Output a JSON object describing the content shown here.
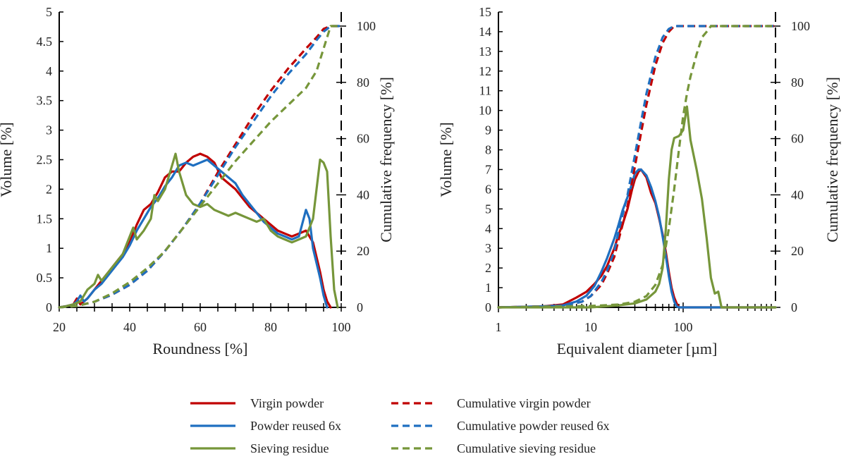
{
  "colors": {
    "virgin": "#c00000",
    "reused": "#1f6fc0",
    "residue": "#76963a",
    "axis": "#000000"
  },
  "chart_data": [
    {
      "type": "line",
      "title": "",
      "xlabel": "Roundness [%]",
      "ylabel": "Volume [%]",
      "y2label": "Cumulative frequency [%]",
      "xlim": [
        20,
        100
      ],
      "ylim": [
        0,
        5
      ],
      "y2lim": [
        0,
        105
      ],
      "xticks": [
        20,
        40,
        60,
        80,
        100
      ],
      "yticks": [
        "0",
        "0.5",
        "1",
        "1.5",
        "2",
        "2.5",
        "3",
        "3.5",
        "4",
        "4.5",
        "5"
      ],
      "y2ticks": [
        0,
        20,
        40,
        60,
        80,
        100
      ],
      "series": [
        {
          "name": "Virgin powder",
          "color_key": "virgin",
          "dashed": false,
          "axis": "left",
          "x": [
            20,
            22,
            24,
            25,
            26,
            27,
            28,
            30,
            32,
            34,
            36,
            38,
            40,
            42,
            44,
            46,
            48,
            50,
            52,
            54,
            56,
            58,
            60,
            62,
            64,
            66,
            68,
            70,
            72,
            74,
            76,
            78,
            80,
            82,
            84,
            86,
            88,
            90,
            92,
            94,
            95,
            96,
            97
          ],
          "y": [
            0,
            0.02,
            0.05,
            0.15,
            0.05,
            0.1,
            0.15,
            0.3,
            0.45,
            0.6,
            0.75,
            0.9,
            1.1,
            1.4,
            1.65,
            1.75,
            1.95,
            2.2,
            2.3,
            2.3,
            2.45,
            2.55,
            2.6,
            2.55,
            2.45,
            2.2,
            2.1,
            2.0,
            1.85,
            1.7,
            1.6,
            1.5,
            1.4,
            1.3,
            1.25,
            1.2,
            1.25,
            1.3,
            1.1,
            0.6,
            0.3,
            0.1,
            0
          ]
        },
        {
          "name": "Powder reused 6x",
          "color_key": "reused",
          "dashed": false,
          "axis": "left",
          "x": [
            20,
            22,
            24,
            25,
            26,
            27,
            28,
            30,
            32,
            34,
            36,
            38,
            40,
            42,
            44,
            46,
            48,
            50,
            52,
            54,
            56,
            58,
            60,
            62,
            64,
            66,
            68,
            70,
            72,
            74,
            76,
            78,
            80,
            82,
            84,
            86,
            88,
            90,
            91,
            92,
            94,
            95,
            96
          ],
          "y": [
            0,
            0.02,
            0.05,
            0.1,
            0.2,
            0.1,
            0.15,
            0.3,
            0.4,
            0.55,
            0.7,
            0.85,
            1.05,
            1.3,
            1.5,
            1.7,
            1.85,
            2.05,
            2.2,
            2.4,
            2.45,
            2.4,
            2.45,
            2.5,
            2.4,
            2.3,
            2.2,
            2.1,
            1.9,
            1.75,
            1.6,
            1.45,
            1.35,
            1.25,
            1.2,
            1.15,
            1.2,
            1.65,
            1.5,
            1.0,
            0.5,
            0.2,
            0
          ]
        },
        {
          "name": "Sieving residue",
          "color_key": "residue",
          "dashed": false,
          "axis": "left",
          "x": [
            20,
            22,
            24,
            26,
            28,
            30,
            31,
            32,
            34,
            36,
            38,
            40,
            41,
            42,
            44,
            46,
            47,
            48,
            50,
            52,
            53,
            54,
            56,
            58,
            60,
            62,
            64,
            66,
            68,
            70,
            72,
            74,
            76,
            78,
            80,
            82,
            84,
            86,
            88,
            90,
            92,
            93,
            94,
            95,
            96,
            97,
            98,
            99
          ],
          "y": [
            0,
            0.02,
            0.05,
            0.1,
            0.3,
            0.4,
            0.55,
            0.45,
            0.6,
            0.75,
            0.9,
            1.2,
            1.35,
            1.15,
            1.3,
            1.5,
            1.9,
            1.8,
            2.0,
            2.4,
            2.6,
            2.3,
            1.9,
            1.75,
            1.7,
            1.75,
            1.65,
            1.6,
            1.55,
            1.6,
            1.55,
            1.5,
            1.45,
            1.5,
            1.3,
            1.2,
            1.15,
            1.1,
            1.15,
            1.2,
            1.5,
            2.0,
            2.5,
            2.45,
            2.3,
            1.2,
            0.3,
            0
          ]
        },
        {
          "name": "Cumulative virgin powder",
          "color_key": "virgin",
          "dashed": true,
          "axis": "right",
          "x": [
            20,
            25,
            30,
            35,
            40,
            45,
            50,
            55,
            60,
            65,
            70,
            75,
            80,
            85,
            90,
            93,
            95,
            97,
            100
          ],
          "y": [
            0,
            0.5,
            2,
            4.5,
            8,
            13,
            20,
            28,
            37,
            48,
            58,
            68,
            77,
            85,
            92,
            96,
            99,
            100,
            100
          ]
        },
        {
          "name": "Cumulative powder reused 6x",
          "color_key": "reused",
          "dashed": true,
          "axis": "right",
          "x": [
            20,
            25,
            30,
            35,
            40,
            45,
            50,
            55,
            60,
            65,
            70,
            75,
            80,
            85,
            90,
            93,
            95,
            97,
            100
          ],
          "y": [
            0,
            0.5,
            2,
            4.5,
            8,
            13,
            20,
            28,
            37,
            47,
            57,
            66,
            75,
            83,
            90,
            95,
            98,
            100,
            100
          ]
        },
        {
          "name": "Cumulative sieving residue",
          "color_key": "residue",
          "dashed": true,
          "axis": "right",
          "x": [
            20,
            25,
            30,
            35,
            40,
            45,
            50,
            55,
            60,
            65,
            70,
            75,
            80,
            85,
            90,
            93,
            95,
            97,
            100
          ],
          "y": [
            0,
            0.5,
            2,
            5,
            9,
            14,
            20,
            28,
            36,
            44,
            52,
            59,
            66,
            72,
            78,
            84,
            92,
            100,
            100
          ]
        }
      ]
    },
    {
      "type": "line",
      "title": "",
      "xscale": "log",
      "xlabel": "Equivalent diameter [µm]",
      "ylabel": "Volume [%]",
      "y2label": "Cumulative frequency [%]",
      "xlim": [
        1,
        1000
      ],
      "ylim": [
        0,
        15
      ],
      "y2lim": [
        0,
        105
      ],
      "xticks": [
        "1",
        "10",
        "100"
      ],
      "yticks": [
        "0",
        "1",
        "2",
        "3",
        "4",
        "5",
        "6",
        "7",
        "8",
        "9",
        "10",
        "11",
        "12",
        "13",
        "14",
        "15"
      ],
      "y2ticks": [
        0,
        20,
        40,
        60,
        80,
        100
      ],
      "series": [
        {
          "name": "Virgin powder",
          "color_key": "virgin",
          "dashed": false,
          "axis": "left",
          "x": [
            1,
            3,
            5,
            7,
            9,
            11,
            13,
            15,
            18,
            20,
            22,
            25,
            28,
            30,
            33,
            35,
            40,
            45,
            50,
            55,
            60,
            65,
            70,
            75,
            80,
            85,
            90,
            100,
            1000
          ],
          "y": [
            0,
            0.05,
            0.15,
            0.5,
            0.8,
            1.2,
            1.6,
            2.1,
            3.0,
            3.7,
            4.2,
            5.0,
            6.0,
            6.5,
            6.9,
            7.0,
            6.6,
            5.8,
            5.3,
            4.5,
            3.7,
            2.8,
            1.8,
            1.0,
            0.5,
            0.2,
            0,
            0,
            0
          ]
        },
        {
          "name": "Powder reused 6x",
          "color_key": "reused",
          "dashed": false,
          "axis": "left",
          "x": [
            1,
            3,
            5,
            7,
            9,
            11,
            13,
            15,
            18,
            20,
            22,
            25,
            28,
            30,
            33,
            35,
            40,
            45,
            50,
            55,
            60,
            65,
            70,
            75,
            80,
            85,
            90,
            100,
            1000
          ],
          "y": [
            0,
            0.05,
            0.1,
            0.3,
            0.6,
            1.1,
            1.8,
            2.5,
            3.5,
            4.2,
            4.9,
            5.6,
            6.3,
            6.8,
            7.0,
            7.0,
            6.7,
            6.1,
            5.4,
            4.6,
            3.6,
            2.6,
            1.6,
            0.8,
            0.3,
            0.05,
            0,
            0,
            0
          ]
        },
        {
          "name": "Sieving residue",
          "color_key": "residue",
          "dashed": false,
          "axis": "left",
          "x": [
            1,
            10,
            20,
            30,
            40,
            50,
            55,
            60,
            65,
            70,
            75,
            80,
            90,
            100,
            110,
            120,
            140,
            160,
            180,
            200,
            220,
            240,
            260,
            1000
          ],
          "y": [
            0,
            0,
            0.1,
            0.2,
            0.4,
            0.8,
            1.2,
            2.0,
            4.0,
            6.5,
            8.0,
            8.6,
            8.7,
            9.0,
            10.2,
            8.5,
            7.0,
            5.5,
            3.5,
            1.5,
            0.7,
            0.8,
            0,
            0
          ]
        },
        {
          "name": "Cumulative virgin powder",
          "color_key": "virgin",
          "dashed": true,
          "axis": "right",
          "x": [
            1,
            5,
            8,
            10,
            13,
            15,
            18,
            20,
            25,
            30,
            35,
            40,
            50,
            60,
            70,
            80,
            90,
            100,
            1000
          ],
          "y": [
            0,
            0.5,
            2,
            4,
            8,
            12,
            18,
            24,
            36,
            50,
            62,
            72,
            86,
            94,
            98,
            100,
            100,
            100,
            100
          ]
        },
        {
          "name": "Cumulative powder reused 6x",
          "color_key": "reused",
          "dashed": true,
          "axis": "right",
          "x": [
            1,
            5,
            8,
            10,
            13,
            15,
            18,
            20,
            25,
            30,
            35,
            40,
            50,
            60,
            70,
            80,
            90,
            100,
            1000
          ],
          "y": [
            0,
            0.5,
            2,
            4,
            9,
            13,
            20,
            27,
            40,
            54,
            66,
            76,
            89,
            96,
            99,
            100,
            100,
            100,
            100
          ]
        },
        {
          "name": "Cumulative sieving residue",
          "color_key": "residue",
          "dashed": true,
          "axis": "right",
          "x": [
            1,
            10,
            20,
            30,
            40,
            50,
            60,
            70,
            80,
            90,
            100,
            110,
            120,
            140,
            160,
            180,
            200,
            250,
            1000
          ],
          "y": [
            0,
            0.5,
            1,
            2,
            4,
            8,
            15,
            28,
            42,
            56,
            68,
            76,
            82,
            90,
            96,
            98,
            100,
            100,
            100
          ]
        }
      ]
    }
  ],
  "legend": {
    "items": [
      {
        "label": "Virgin powder",
        "color_key": "virgin",
        "dashed": false
      },
      {
        "label": "Powder reused 6x",
        "color_key": "reused",
        "dashed": false
      },
      {
        "label": "Sieving residue",
        "color_key": "residue",
        "dashed": false
      },
      {
        "label": "Cumulative virgin powder",
        "color_key": "virgin",
        "dashed": true
      },
      {
        "label": "Cumulative powder reused 6x",
        "color_key": "reused",
        "dashed": true
      },
      {
        "label": "Cumulative sieving residue",
        "color_key": "residue",
        "dashed": true
      }
    ]
  }
}
